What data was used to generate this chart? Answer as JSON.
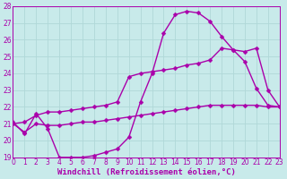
{
  "xlabel": "Windchill (Refroidissement éolien,°C)",
  "bg_color": "#c8eaea",
  "grid_color": "#b0d8d8",
  "line_color": "#aa00aa",
  "xlim": [
    0,
    23
  ],
  "ylim": [
    19,
    28
  ],
  "xticks": [
    0,
    1,
    2,
    3,
    4,
    5,
    6,
    7,
    8,
    9,
    10,
    11,
    12,
    13,
    14,
    15,
    16,
    17,
    18,
    19,
    20,
    21,
    22,
    23
  ],
  "yticks": [
    19,
    20,
    21,
    22,
    23,
    24,
    25,
    26,
    27,
    28
  ],
  "line1_x": [
    0,
    1,
    2,
    3,
    4,
    5,
    6,
    7,
    8,
    9,
    10,
    11,
    12,
    13,
    14,
    15,
    16,
    17,
    18,
    19,
    20,
    21,
    22,
    23
  ],
  "line1_y": [
    21.1,
    20.4,
    21.6,
    20.7,
    19.0,
    19.0,
    19.0,
    19.1,
    19.3,
    19.5,
    20.2,
    22.3,
    24.0,
    26.4,
    27.5,
    27.7,
    27.6,
    27.1,
    26.2,
    25.4,
    24.7,
    23.1,
    22.1,
    22.0
  ],
  "line2_x": [
    0,
    1,
    2,
    3,
    4,
    5,
    6,
    7,
    8,
    9,
    10,
    11,
    12,
    13,
    14,
    15,
    16,
    17,
    18,
    19,
    20,
    21,
    22,
    23
  ],
  "line2_y": [
    21.0,
    21.1,
    21.5,
    21.7,
    21.7,
    21.8,
    21.9,
    22.0,
    22.1,
    22.3,
    23.8,
    24.0,
    24.1,
    24.2,
    24.3,
    24.5,
    24.6,
    24.8,
    25.5,
    25.4,
    25.3,
    25.5,
    23.0,
    22.0
  ],
  "line3_x": [
    0,
    1,
    2,
    3,
    4,
    5,
    6,
    7,
    8,
    9,
    10,
    11,
    12,
    13,
    14,
    15,
    16,
    17,
    18,
    19,
    20,
    21,
    22,
    23
  ],
  "line3_y": [
    21.0,
    20.5,
    21.0,
    20.9,
    20.9,
    21.0,
    21.1,
    21.1,
    21.2,
    21.3,
    21.4,
    21.5,
    21.6,
    21.7,
    21.8,
    21.9,
    22.0,
    22.1,
    22.1,
    22.1,
    22.1,
    22.1,
    22.0,
    22.0
  ],
  "marker": "D",
  "markersize": 2.5,
  "linewidth": 1.0,
  "xlabel_fontsize": 6.5,
  "tick_fontsize": 5.5
}
